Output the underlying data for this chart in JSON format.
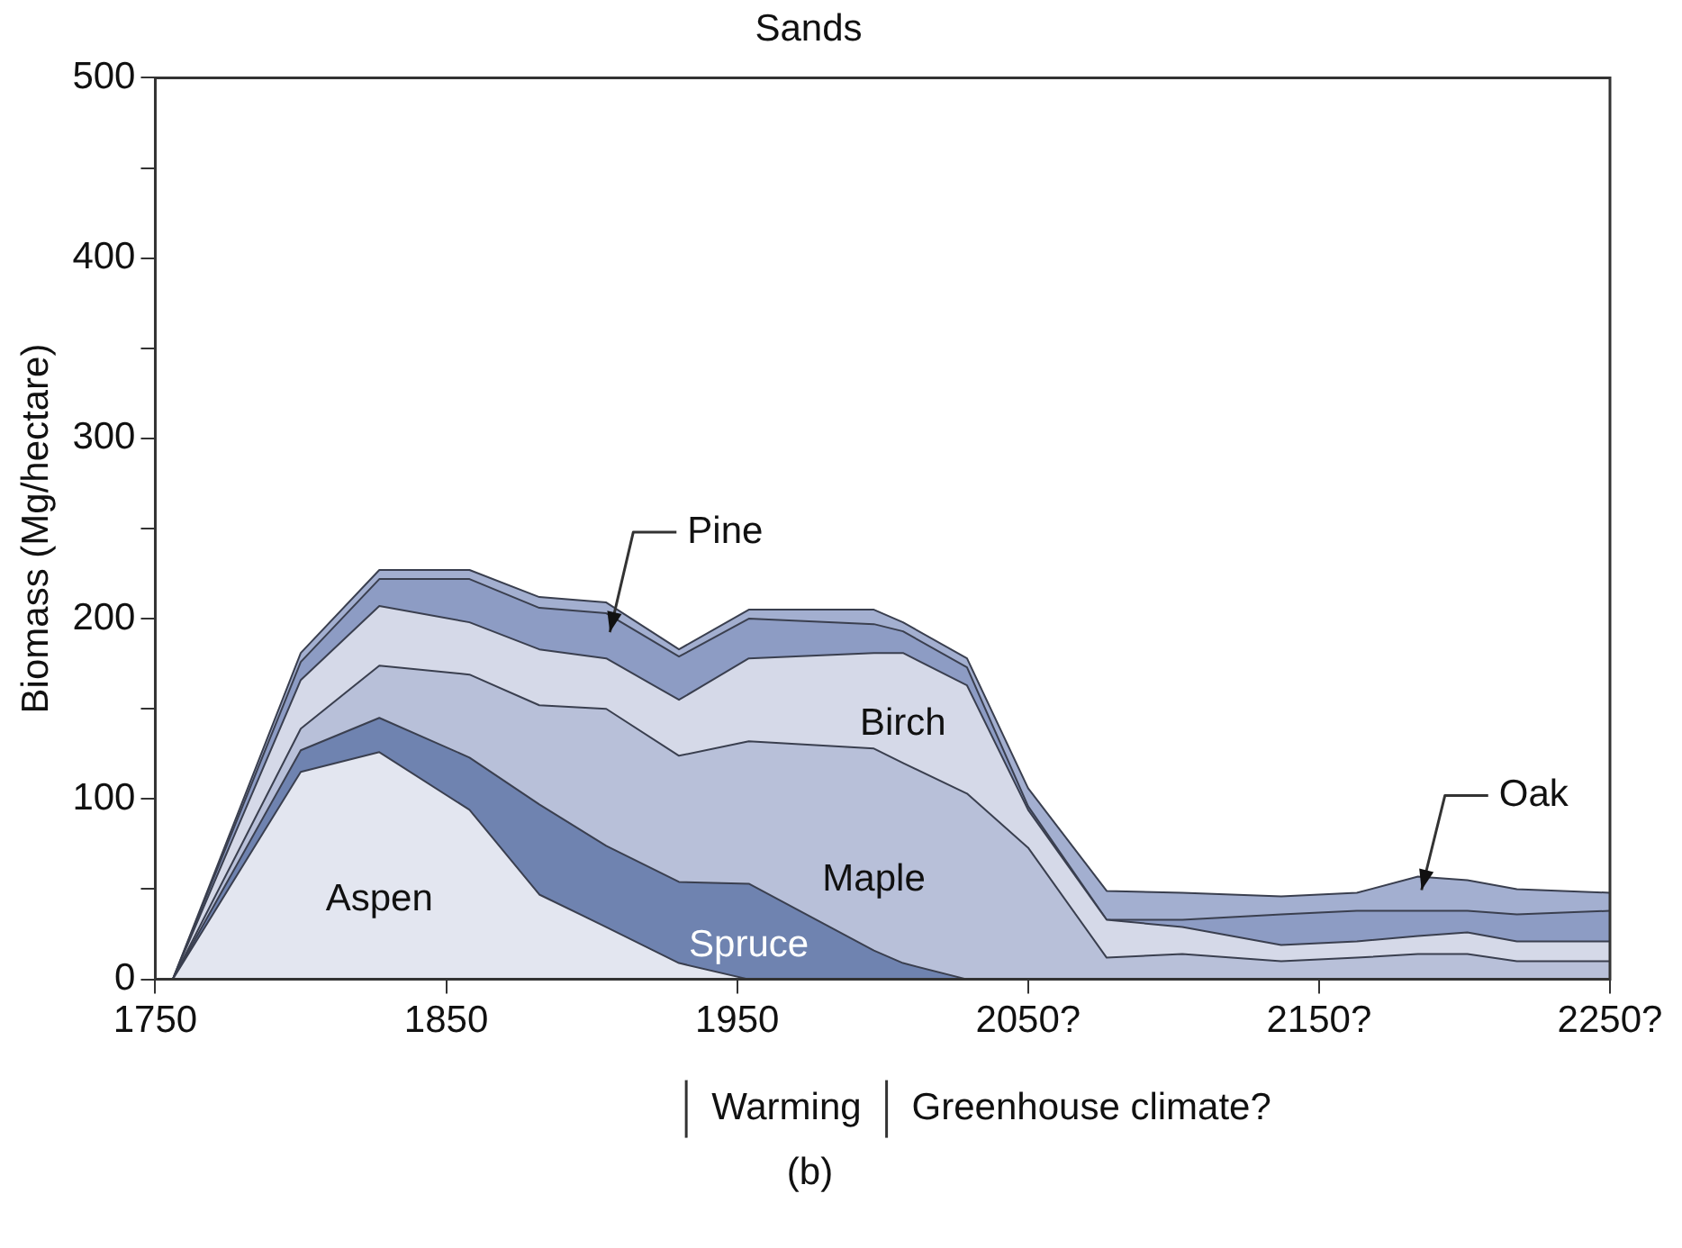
{
  "chart_data": {
    "type": "area",
    "stacked": true,
    "title": "Sands",
    "ylabel": "Biomass (Mg/hectare)",
    "x": [
      1756,
      1800,
      1827,
      1858,
      1882,
      1905,
      1930,
      1954,
      1997,
      2007,
      2029,
      2050,
      2077,
      2103,
      2137,
      2163,
      2184,
      2201,
      2218,
      2250
    ],
    "xlim": [
      1750,
      2250
    ],
    "xticks": [
      1750,
      1850,
      1950,
      {
        "value": 2050,
        "label": "2050?"
      },
      {
        "value": 2150,
        "label": "2150?"
      },
      {
        "value": 2250,
        "label": "2250?"
      }
    ],
    "ylim": [
      0,
      500
    ],
    "yticks": [
      0,
      {
        "value": 50,
        "label": null
      },
      100,
      {
        "value": 150,
        "label": null
      },
      200,
      {
        "value": 250,
        "label": null
      },
      300,
      {
        "value": 350,
        "label": null
      },
      400,
      {
        "value": 450,
        "label": null
      },
      500
    ],
    "series": [
      {
        "name": "Aspen",
        "color": "#e3e6f0",
        "values": [
          0,
          115,
          126,
          94,
          47,
          29,
          9,
          0,
          0,
          0,
          0,
          0,
          0,
          0,
          0,
          0,
          0,
          0,
          0,
          0
        ]
      },
      {
        "name": "Spruce",
        "color": "#6f83b0",
        "values": [
          0,
          12,
          19,
          29,
          50,
          45,
          45,
          53,
          16,
          9,
          0,
          0,
          0,
          0,
          0,
          0,
          0,
          0,
          0,
          0
        ]
      },
      {
        "name": "Maple",
        "color": "#b8c0d9",
        "values": [
          0,
          12,
          29,
          46,
          55,
          76,
          70,
          79,
          112,
          111,
          103,
          73,
          12,
          14,
          10,
          12,
          14,
          14,
          10,
          10
        ]
      },
      {
        "name": "Birch",
        "color": "#d5d9e8",
        "values": [
          0,
          27,
          33,
          29,
          31,
          28,
          31,
          46,
          53,
          61,
          60,
          21,
          21,
          15,
          9,
          9,
          10,
          12,
          11,
          11
        ]
      },
      {
        "name": "Pine",
        "color": "#8d9cc4",
        "values": [
          0,
          10,
          15,
          24,
          23,
          25,
          24,
          22,
          16,
          12,
          10,
          2,
          0,
          4,
          17,
          17,
          14,
          12,
          15,
          17
        ]
      },
      {
        "name": "Oak",
        "color": "#a3afd0",
        "values": [
          0,
          5,
          5,
          5,
          6,
          6,
          4,
          5,
          8,
          5,
          5,
          10,
          16,
          15,
          10,
          10,
          19,
          17,
          14,
          10
        ]
      }
    ],
    "annotations": [
      "Warming",
      "Greenhouse climate?",
      "(b)"
    ]
  }
}
